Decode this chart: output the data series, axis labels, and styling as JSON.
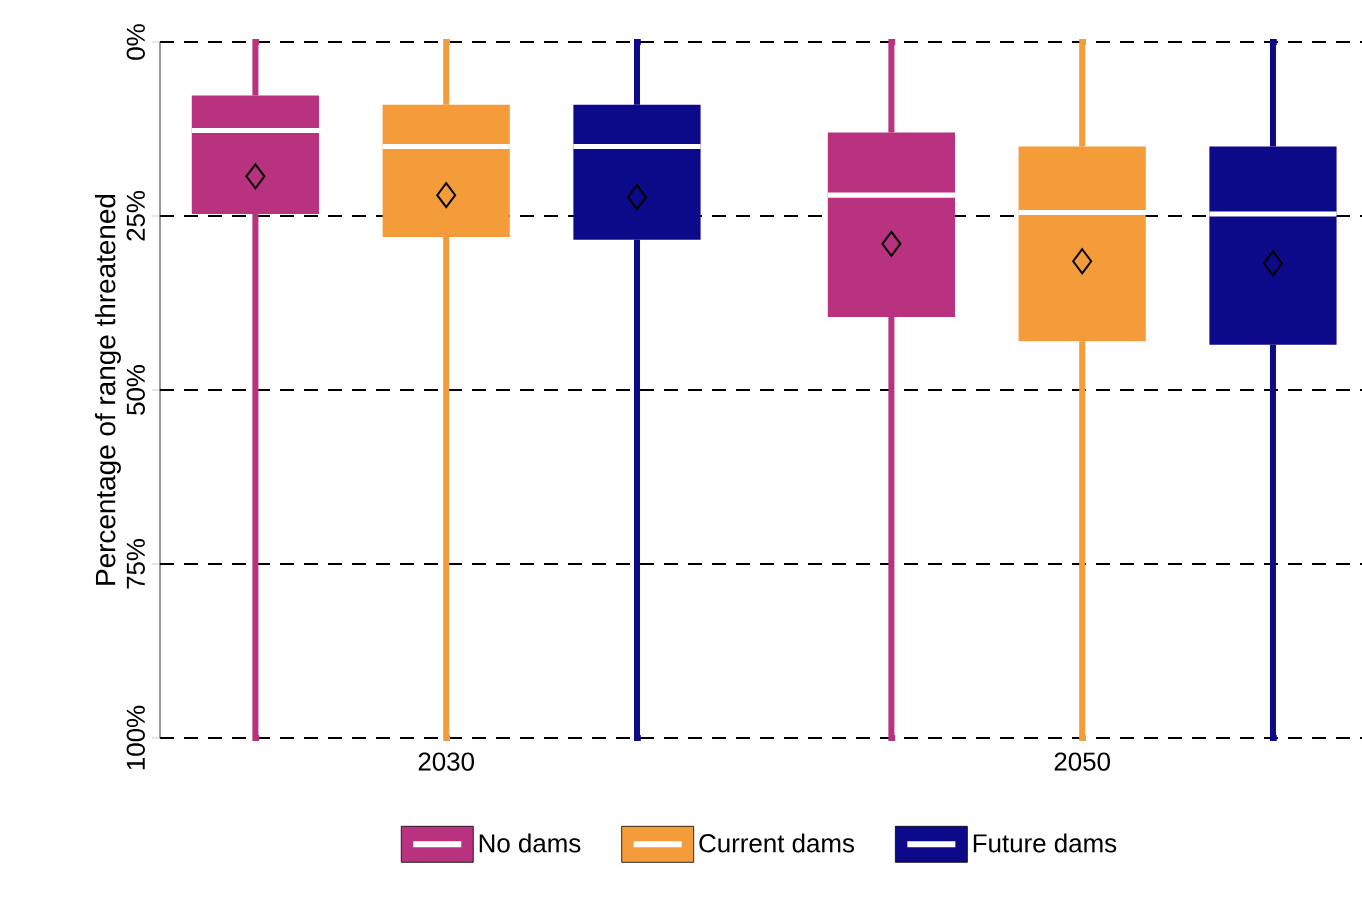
{
  "chart_data": {
    "type": "box",
    "ylabel": "Percentage of range threatened",
    "categories": [
      "2030",
      "2050"
    ],
    "ylim": [
      100,
      0
    ],
    "yticks": [
      {
        "value": 0,
        "label": "0%"
      },
      {
        "value": 25,
        "label": "25%"
      },
      {
        "value": 50,
        "label": "50%"
      },
      {
        "value": 75,
        "label": "75%"
      },
      {
        "value": 100,
        "label": "100%"
      }
    ],
    "grid": "y",
    "legend": "bottom",
    "marker": "diamond",
    "series": [
      {
        "name": "No dams",
        "color": "#b8327f",
        "boxes": [
          {
            "low": 0,
            "q1": 7.7,
            "median": 12.7,
            "q3": 24.7,
            "high": 100,
            "mean": 19.3
          },
          {
            "low": 0,
            "q1": 13,
            "median": 22,
            "q3": 39.5,
            "high": 100,
            "mean": 29
          }
        ]
      },
      {
        "name": "Current dams",
        "color": "#f59c3a",
        "boxes": [
          {
            "low": 0,
            "q1": 9,
            "median": 15,
            "q3": 28,
            "high": 100,
            "mean": 22
          },
          {
            "low": 0,
            "q1": 15,
            "median": 24.5,
            "q3": 43,
            "high": 100,
            "mean": 31.5
          }
        ]
      },
      {
        "name": "Future dams",
        "color": "#0d0a8a",
        "boxes": [
          {
            "low": 0,
            "q1": 9,
            "median": 15,
            "q3": 28.4,
            "high": 100,
            "mean": 22.3
          },
          {
            "low": 0,
            "q1": 15,
            "median": 24.7,
            "q3": 43.5,
            "high": 100,
            "mean": 31.8
          }
        ]
      }
    ]
  }
}
